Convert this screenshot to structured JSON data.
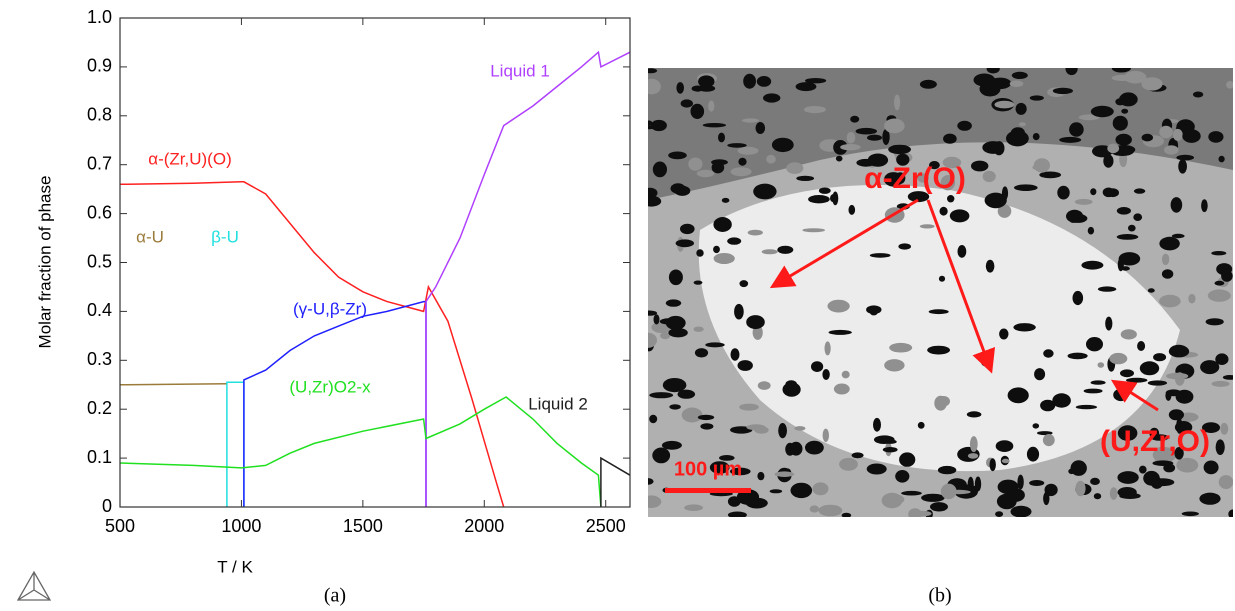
{
  "chart_data": {
    "type": "line",
    "xlabel": "T / K",
    "ylabel": "Molar fraction of phase",
    "xlim": [
      500,
      2600
    ],
    "xticks": [
      500,
      1000,
      1500,
      2000,
      2500
    ],
    "ylim": [
      0,
      1
    ],
    "yticks": [
      0,
      0.1,
      0.2,
      0.3,
      0.4,
      0.5,
      0.6,
      0.7,
      0.8,
      0.9,
      {
        "value": 1,
        "label": "1.0"
      }
    ],
    "series": [
      {
        "name": "α-(Zr,U)(O)",
        "color": "#ff2020",
        "x": [
          500,
          800,
          1000,
          1010,
          1100,
          1200,
          1300,
          1400,
          1500,
          1600,
          1750,
          1770,
          1850,
          1950,
          2050,
          2080
        ],
        "values": [
          0.66,
          0.662,
          0.665,
          0.665,
          0.64,
          0.58,
          0.52,
          0.47,
          0.44,
          0.42,
          0.4,
          0.45,
          0.38,
          0.22,
          0.05,
          0
        ]
      },
      {
        "name": "α-U",
        "color": "#9b7b3a",
        "x": [
          500,
          940
        ],
        "values": [
          0.25,
          0.252
        ]
      },
      {
        "name": "β-U",
        "color": "#20e0e0",
        "x": [
          940,
          940,
          1010,
          1010
        ],
        "values": [
          0,
          0.255,
          0.255,
          0
        ]
      },
      {
        "name": "(γ-U,β-Zr)",
        "color": "#2020ff",
        "x": [
          1010,
          1010,
          1100,
          1200,
          1300,
          1400,
          1500,
          1600,
          1750,
          1760,
          1760
        ],
        "values": [
          0,
          0.26,
          0.28,
          0.32,
          0.35,
          0.37,
          0.39,
          0.4,
          0.42,
          0.42,
          0
        ]
      },
      {
        "name": "Liquid 1",
        "color": "#b040ff",
        "x": [
          1760,
          1760,
          1800,
          1900,
          2000,
          2080,
          2200,
          2300,
          2400,
          2470,
          2480,
          2600
        ],
        "values": [
          0,
          0.42,
          0.45,
          0.55,
          0.68,
          0.78,
          0.82,
          0.86,
          0.9,
          0.93,
          0.9,
          0.93
        ]
      },
      {
        "name": "(U,Zr)O2-x",
        "color": "#20e020",
        "x": [
          500,
          800,
          1000,
          1100,
          1200,
          1300,
          1500,
          1750,
          1760,
          1900,
          2000,
          2090,
          2200,
          2300,
          2400,
          2470,
          2480
        ],
        "values": [
          0.09,
          0.085,
          0.08,
          0.085,
          0.11,
          0.13,
          0.155,
          0.18,
          0.14,
          0.17,
          0.2,
          0.225,
          0.18,
          0.13,
          0.09,
          0.065,
          0
        ]
      },
      {
        "name": "Liquid 2",
        "color": "#202020",
        "x": [
          2480,
          2480,
          2600
        ],
        "values": [
          0,
          0.1,
          0.065
        ]
      }
    ]
  },
  "micrograph": {
    "labels": [
      "α-Zr(O)",
      "(U,Zr,O)"
    ],
    "scale_bar": "100 µm"
  },
  "captions": [
    "(a)",
    "(b)"
  ]
}
